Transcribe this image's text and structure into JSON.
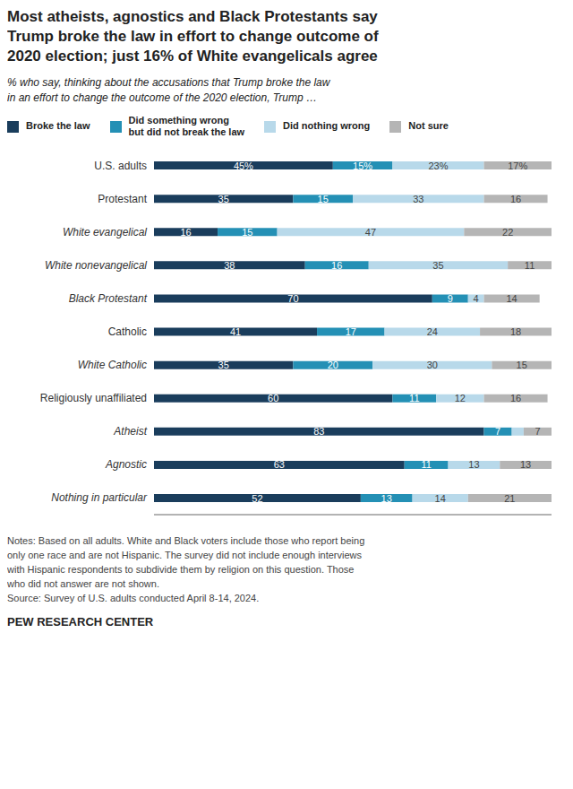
{
  "chart_data": {
    "type": "bar",
    "orientation": "horizontal",
    "stacked": true,
    "data_labels": true,
    "grid": false,
    "legend": "top",
    "tick_labels": "y",
    "title": "Most atheists, agnostics and Black Protestants say\nTrump broke the law in effort to change outcome of\n2020 election; just 16% of White evangelicals agree",
    "subtitle": "% who say, thinking about the accusations that Trump broke the law\nin an effort to change the outcome of the 2020 election, Trump …",
    "notes": [
      "Notes: Based on all adults. White and Black voters include those who report being",
      "only one race and are not Hispanic. The survey did not include enough interviews",
      "with Hispanic respondents to subdivide them by religion on this question. Those",
      "who did not answer are not shown.",
      "Source: Survey of U.S. adults conducted April 8-14, 2024."
    ],
    "source": "PEW RESEARCH CENTER",
    "categories": [
      "U.S. adults",
      "Protestant",
      "White evangelical",
      "White nonevangelical",
      "Black Protestant",
      "Catholic",
      "White Catholic",
      "Religiously unaffiliated",
      "Atheist",
      "Agnostic",
      "Nothing in particular"
    ],
    "xlim": [
      0,
      100
    ],
    "series": [
      {
        "name": "Broke the law",
        "color": "#1a3d5c",
        "values": [
          45,
          35,
          16,
          38,
          70,
          41,
          35,
          60,
          83,
          63,
          52
        ],
        "value_labels": [
          "45%",
          "35",
          "16",
          "38",
          "70",
          "41",
          "35",
          "60",
          "83",
          "63",
          "52"
        ]
      },
      {
        "name": "Did something wrong\nbut did not break the law",
        "color": "#2490b5",
        "values": [
          15,
          15,
          15,
          16,
          9,
          17,
          20,
          11,
          7,
          11,
          13
        ],
        "value_labels": [
          "15%",
          "15",
          "15",
          "16",
          "9",
          "17",
          "20",
          "11",
          "7",
          "11",
          "13"
        ]
      },
      {
        "name": "Did nothing wrong",
        "color": "#b8d9ea",
        "values": [
          23,
          33,
          47,
          35,
          4,
          24,
          30,
          12,
          3,
          13,
          14
        ],
        "value_labels": [
          "23%",
          "33",
          "47",
          "35",
          "4",
          "24",
          "30",
          "12",
          null,
          "13",
          "14"
        ]
      },
      {
        "name": "Not sure",
        "color": "#b5b5b5",
        "values": [
          17,
          16,
          22,
          11,
          14,
          18,
          15,
          16,
          7,
          13,
          21
        ],
        "value_labels": [
          "17%",
          "16",
          "22",
          "11",
          "14",
          "18",
          "15",
          "16",
          "7",
          "13",
          "21"
        ]
      }
    ]
  }
}
